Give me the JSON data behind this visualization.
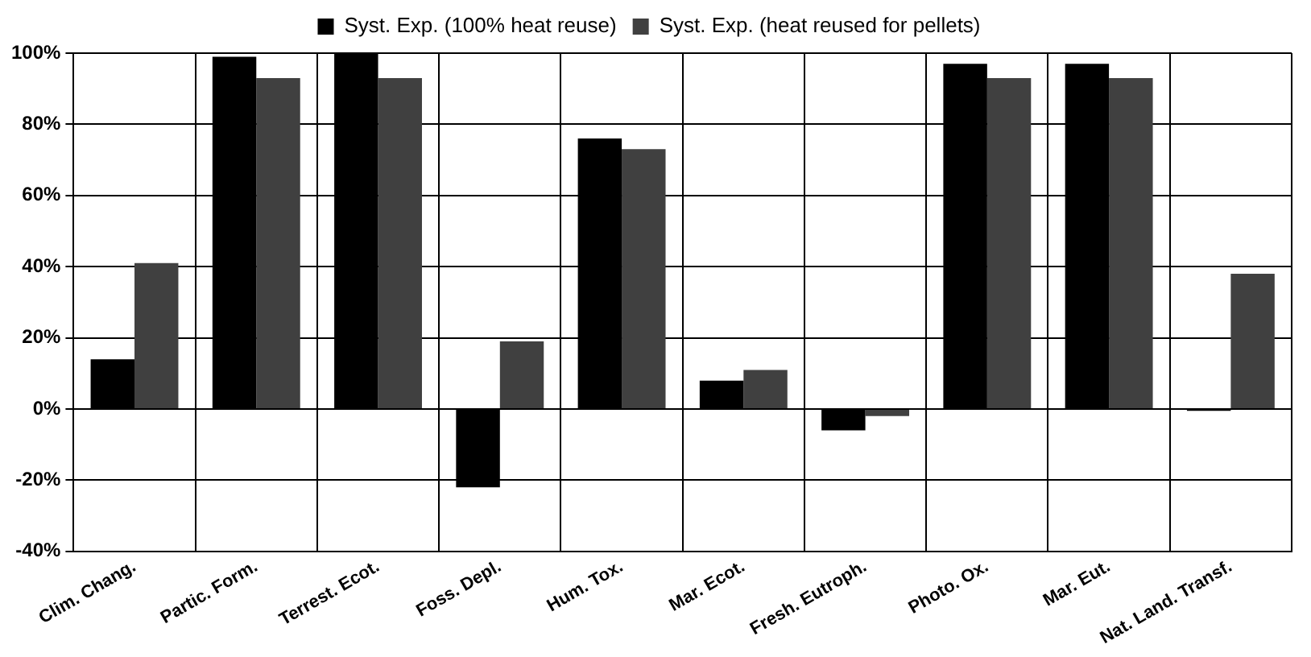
{
  "chart_data": {
    "type": "bar",
    "categories": [
      "Clim. Chang.",
      "Partic. Form.",
      "Terrest. Ecot.",
      "Foss. Depl.",
      "Hum. Tox.",
      "Mar. Ecot.",
      "Fresh. Eutroph.",
      "Photo. Ox.",
      "Mar. Eut.",
      "Nat. Land. Transf."
    ],
    "series": [
      {
        "name": "Syst. Exp. (100% heat reuse)",
        "color": "#000000",
        "values": [
          14,
          99,
          100,
          -22,
          76,
          8,
          -6,
          97,
          97,
          -0.5
        ]
      },
      {
        "name": "Syst. Exp. (heat reused for pellets)",
        "color": "#404040",
        "values": [
          41,
          93,
          93,
          19,
          73,
          11,
          -2,
          93,
          93,
          38
        ]
      }
    ],
    "ylim": [
      -40,
      100
    ],
    "yticks": [
      {
        "value": -40,
        "label": "-40%"
      },
      {
        "value": -20,
        "label": "-20%"
      },
      {
        "value": 0,
        "label": "0%"
      },
      {
        "value": 20,
        "label": "20%"
      },
      {
        "value": 40,
        "label": "40%"
      },
      {
        "value": 60,
        "label": "60%"
      },
      {
        "value": 80,
        "label": "80%"
      },
      {
        "value": 100,
        "label": "100%"
      }
    ],
    "grid": true,
    "legend": "top"
  }
}
